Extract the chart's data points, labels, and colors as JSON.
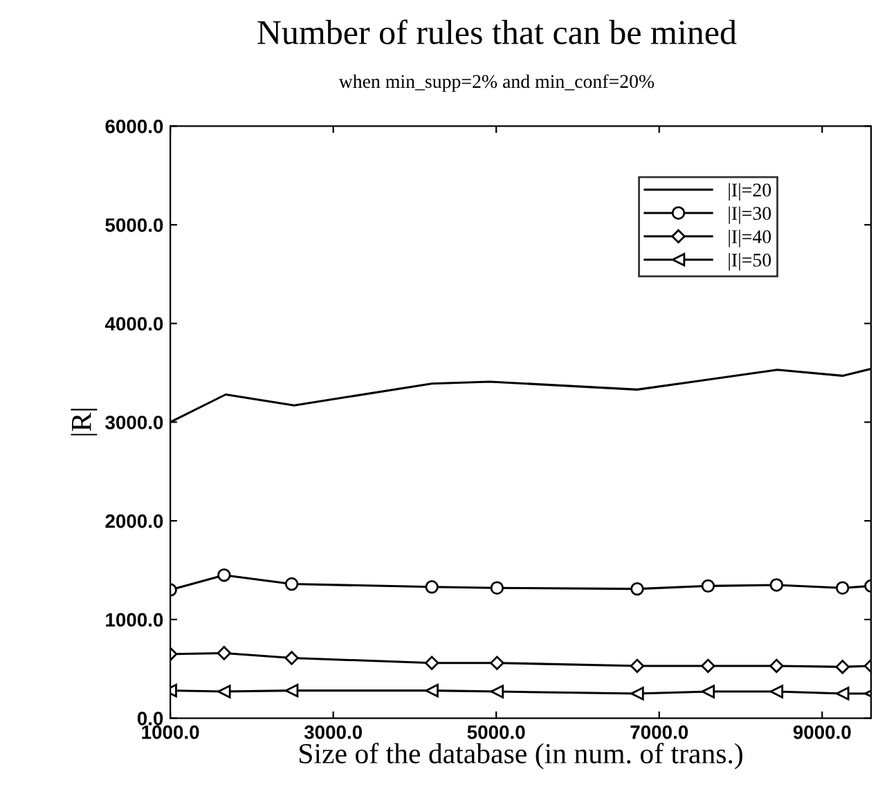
{
  "chart_data": {
    "type": "line",
    "title": "Number of rules that can be mined",
    "subtitle": "when min_supp=2% and min_conf=20%",
    "xlabel": "Size of the database (in num. of trans.)",
    "ylabel": "|R|",
    "xlim": [
      1000,
      9600
    ],
    "ylim": [
      0,
      6000
    ],
    "xticks": [
      {
        "value": 1000,
        "label": "1000.0"
      },
      {
        "value": 3000,
        "label": "3000.0"
      },
      {
        "value": 5000,
        "label": "5000.0"
      },
      {
        "value": 7000,
        "label": "7000.0"
      },
      {
        "value": 9000,
        "label": "9000.0"
      }
    ],
    "yticks": [
      {
        "value": 0,
        "label": "0.0"
      },
      {
        "value": 1000,
        "label": "1000.0"
      },
      {
        "value": 2000,
        "label": "2000.0"
      },
      {
        "value": 3000,
        "label": "3000.0"
      },
      {
        "value": 4000,
        "label": "4000.0"
      },
      {
        "value": 5000,
        "label": "5000.0"
      },
      {
        "value": 6000,
        "label": "6000.0"
      }
    ],
    "grid": false,
    "legend": "top right",
    "series": [
      {
        "name": "|I|=20",
        "color": "#000000",
        "marker": "none",
        "x": [
          1000,
          1680,
          2520,
          4210,
          4920,
          6730,
          8450,
          9250,
          9600
        ],
        "values": [
          3000,
          3280,
          3170,
          3390,
          3410,
          3330,
          3530,
          3470,
          3540
        ]
      },
      {
        "name": "|I|=30",
        "color": "#000000",
        "marker": "circle",
        "x": [
          1000,
          1660,
          2490,
          4210,
          5010,
          6730,
          7600,
          8440,
          9250,
          9600
        ],
        "values": [
          1300,
          1450,
          1360,
          1330,
          1320,
          1310,
          1340,
          1350,
          1320,
          1340
        ]
      },
      {
        "name": "|I|=40",
        "color": "#000000",
        "marker": "diamond",
        "x": [
          1000,
          1660,
          2490,
          4210,
          5010,
          6730,
          7600,
          8440,
          9250,
          9600
        ],
        "values": [
          650,
          660,
          610,
          560,
          560,
          530,
          530,
          530,
          520,
          530
        ]
      },
      {
        "name": "|I|=50",
        "color": "#000000",
        "marker": "triangle",
        "x": [
          1000,
          1660,
          2490,
          4210,
          5010,
          6730,
          7600,
          8440,
          9250,
          9600
        ],
        "values": [
          280,
          270,
          280,
          280,
          270,
          250,
          270,
          270,
          250,
          250
        ]
      }
    ]
  }
}
